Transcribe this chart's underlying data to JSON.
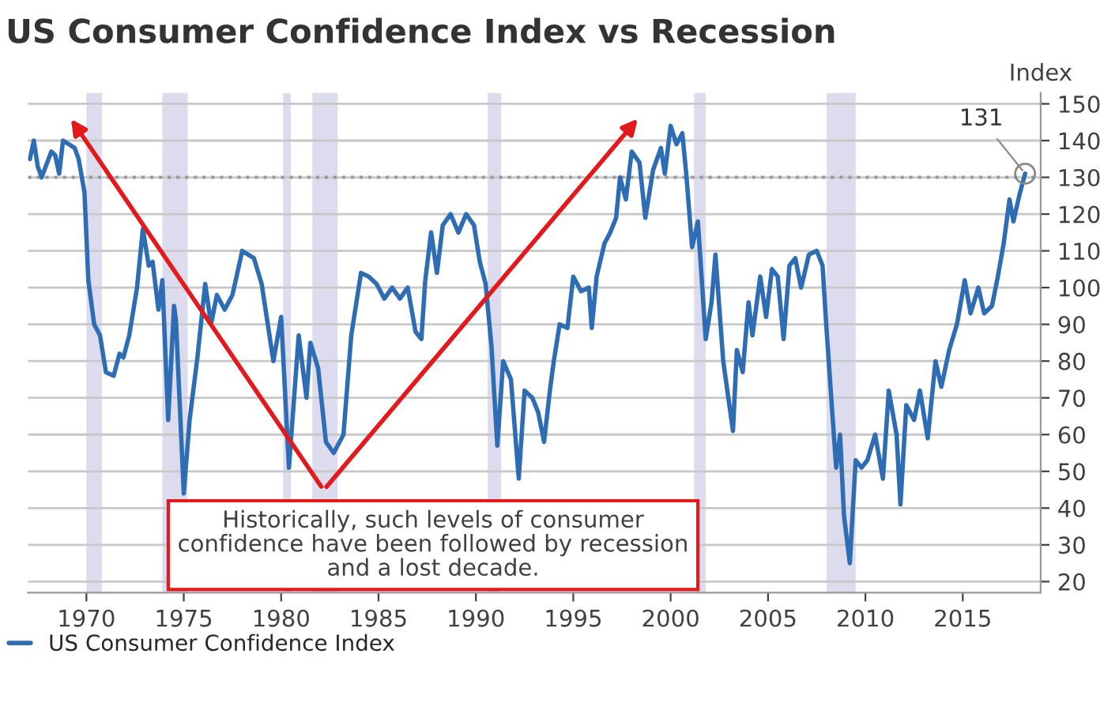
{
  "chart_data": {
    "type": "line",
    "title": "US Consumer Confidence Index vs Recession",
    "ylabel": "Index",
    "x": [
      1967.1,
      1967.3,
      1967.5,
      1967.7,
      1968.2,
      1968.4,
      1968.6,
      1968.8,
      1969.4,
      1969.6,
      1969.9,
      1970.1,
      1970.4,
      1970.7,
      1971.0,
      1971.4,
      1971.7,
      1971.9,
      1972.2,
      1972.6,
      1972.9,
      1973.2,
      1973.4,
      1973.7,
      1973.9,
      1974.2,
      1974.5,
      1974.6,
      1975.0,
      1975.3,
      1975.7,
      1976.1,
      1976.4,
      1976.7,
      1977.1,
      1977.5,
      1978.0,
      1978.6,
      1979.0,
      1979.6,
      1980.0,
      1980.4,
      1980.9,
      1981.3,
      1981.5,
      1981.9,
      1982.3,
      1982.7,
      1983.2,
      1983.6,
      1984.1,
      1984.5,
      1984.9,
      1985.3,
      1985.7,
      1986.1,
      1986.5,
      1986.9,
      1987.2,
      1987.4,
      1987.7,
      1988.0,
      1988.3,
      1988.7,
      1989.1,
      1989.5,
      1989.9,
      1990.2,
      1990.5,
      1990.8,
      1991.1,
      1991.4,
      1991.8,
      1992.2,
      1992.5,
      1992.9,
      1993.2,
      1993.5,
      1993.8,
      1994.0,
      1994.3,
      1994.7,
      1995.0,
      1995.4,
      1995.8,
      1995.95,
      1996.2,
      1996.6,
      1996.9,
      1997.2,
      1997.4,
      1997.7,
      1998.0,
      1998.4,
      1998.7,
      1999.1,
      1999.5,
      1999.7,
      2000.0,
      2000.3,
      2000.6,
      2000.8,
      2001.1,
      2001.4,
      2001.8,
      2002.1,
      2002.3,
      2002.7,
      2003.2,
      2003.4,
      2003.7,
      2004.0,
      2004.2,
      2004.6,
      2004.9,
      2005.2,
      2005.5,
      2005.8,
      2006.1,
      2006.4,
      2006.7,
      2007.1,
      2007.5,
      2007.8,
      2008.0,
      2008.3,
      2008.5,
      2008.7,
      2008.9,
      2009.2,
      2009.5,
      2009.8,
      2010.1,
      2010.5,
      2010.9,
      2011.2,
      2011.6,
      2011.8,
      2012.1,
      2012.5,
      2012.8,
      2013.2,
      2013.6,
      2013.9,
      2014.3,
      2014.7,
      2015.1,
      2015.4,
      2015.8,
      2016.1,
      2016.5,
      2016.8,
      2017.1,
      2017.4,
      2017.6,
      2017.9,
      2018.2
    ],
    "series": [
      {
        "name": "US Consumer Confidence Index",
        "color": "#2e6db4",
        "values": [
          135,
          140,
          133,
          130,
          137,
          136,
          131,
          140,
          138,
          135,
          126,
          102,
          90,
          87,
          77,
          76,
          82,
          81,
          87,
          100,
          116,
          106,
          107,
          94,
          102,
          64,
          95,
          91,
          44,
          64,
          81,
          101,
          90,
          98,
          94,
          98,
          110,
          108,
          101,
          80,
          92,
          51,
          87,
          70,
          85,
          78,
          58,
          55,
          60,
          87,
          104,
          103,
          101,
          97,
          100,
          97,
          100,
          88,
          86,
          102,
          115,
          104,
          117,
          120,
          115,
          120,
          117,
          107,
          101,
          84,
          57,
          80,
          75,
          48,
          72,
          70,
          66,
          58,
          72,
          80,
          90,
          89,
          103,
          99,
          100,
          89,
          103,
          112,
          115,
          119,
          130,
          124,
          137,
          134,
          119,
          132,
          138,
          131,
          144,
          139,
          142,
          131,
          111,
          118,
          86,
          96,
          109,
          80,
          61,
          83,
          77,
          96,
          87,
          103,
          92,
          105,
          103,
          86,
          106,
          108,
          100,
          109,
          110,
          106,
          89,
          66,
          51,
          60,
          38,
          25,
          53,
          51,
          53,
          60,
          48,
          72,
          60,
          41,
          68,
          64,
          72,
          59,
          80,
          73,
          83,
          90,
          102,
          93,
          100,
          93,
          95,
          103,
          112,
          124,
          118,
          125,
          131
        ]
      }
    ],
    "xlim": [
      1967,
      2019
    ],
    "xticks": [
      1970,
      1975,
      1980,
      1985,
      1990,
      1995,
      2000,
      2005,
      2010,
      2015
    ],
    "ylim": [
      17,
      153
    ],
    "yticks": [
      20,
      30,
      40,
      50,
      60,
      70,
      80,
      90,
      100,
      110,
      120,
      130,
      140,
      150
    ],
    "grid": "y",
    "legend": "bottom left",
    "line_style": "solid",
    "marker": "none",
    "bands": [
      {
        "axis": "x",
        "from": 1970.0,
        "to": 1970.8,
        "color": "#dcdcee"
      },
      {
        "axis": "x",
        "from": 1973.9,
        "to": 1975.2,
        "color": "#dcdcee"
      },
      {
        "axis": "x",
        "from": 1980.1,
        "to": 1980.5,
        "color": "#dcdcee"
      },
      {
        "axis": "x",
        "from": 1981.6,
        "to": 1982.9,
        "color": "#dcdcee"
      },
      {
        "axis": "x",
        "from": 1990.6,
        "to": 1991.3,
        "color": "#dcdcee"
      },
      {
        "axis": "x",
        "from": 2001.2,
        "to": 2001.8,
        "color": "#dcdcee"
      },
      {
        "axis": "x",
        "from": 2008.0,
        "to": 2009.5,
        "color": "#dcdcee"
      }
    ],
    "ref_lines": [
      {
        "axis": "y",
        "value": 130,
        "color": "#999999",
        "line_style": "dotted"
      }
    ],
    "annotations": [
      {
        "text": "131",
        "x": 2018.2,
        "y": 131
      },
      "Historically, such levels of consumer\nconfidence have been followed by recession\nand a lost decade."
    ]
  }
}
